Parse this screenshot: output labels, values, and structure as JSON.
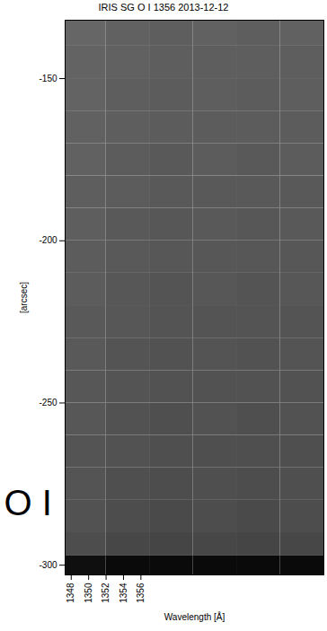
{
  "chart_data": {
    "type": "heatmap",
    "title": "IRIS SG O I 1356 2013-12-12",
    "x_label": "Wavelength [Å]",
    "y_label": "[arcsec]",
    "xlim": [
      1347.3,
      1377
    ],
    "xticks": [
      1348,
      1350,
      1352,
      1354,
      1356
    ],
    "ylim": [
      -303,
      -132
    ],
    "yticks": [
      -150,
      -200,
      -250,
      -300
    ],
    "grid": false,
    "cells": {
      "x_edges": [
        1347.3,
        1352,
        1357,
        1362,
        1367,
        1372,
        1377
      ],
      "y_edges": [
        -303,
        -297,
        -290,
        -280,
        -270,
        -260,
        -250,
        -240,
        -230,
        -220,
        -210,
        -200,
        -190,
        -180,
        -170,
        -160,
        -150,
        -140,
        -132
      ],
      "values": [
        [
          0.06,
          0.04,
          0.04,
          0.04,
          0.04,
          0.04
        ],
        [
          0.3,
          0.28,
          0.27,
          0.28,
          0.27,
          0.28
        ],
        [
          0.32,
          0.3,
          0.29,
          0.3,
          0.29,
          0.3
        ],
        [
          0.33,
          0.31,
          0.3,
          0.31,
          0.3,
          0.31
        ],
        [
          0.33,
          0.32,
          0.31,
          0.31,
          0.31,
          0.31
        ],
        [
          0.34,
          0.32,
          0.31,
          0.32,
          0.31,
          0.32
        ],
        [
          0.34,
          0.33,
          0.32,
          0.32,
          0.32,
          0.32
        ],
        [
          0.35,
          0.33,
          0.32,
          0.33,
          0.32,
          0.33
        ],
        [
          0.35,
          0.34,
          0.33,
          0.33,
          0.33,
          0.33
        ],
        [
          0.36,
          0.34,
          0.33,
          0.34,
          0.33,
          0.34
        ],
        [
          0.36,
          0.35,
          0.34,
          0.34,
          0.34,
          0.34
        ],
        [
          0.37,
          0.35,
          0.34,
          0.35,
          0.34,
          0.35
        ],
        [
          0.37,
          0.36,
          0.35,
          0.35,
          0.35,
          0.35
        ],
        [
          0.38,
          0.36,
          0.35,
          0.36,
          0.35,
          0.36
        ],
        [
          0.38,
          0.37,
          0.36,
          0.36,
          0.36,
          0.36
        ],
        [
          0.39,
          0.37,
          0.36,
          0.37,
          0.36,
          0.37
        ],
        [
          0.39,
          0.38,
          0.37,
          0.37,
          0.37,
          0.37
        ],
        [
          0.4,
          0.38,
          0.37,
          0.38,
          0.37,
          0.38
        ]
      ],
      "zlim": [
        0,
        1
      ]
    },
    "annotations": [
      {
        "text": "O I"
      }
    ]
  }
}
